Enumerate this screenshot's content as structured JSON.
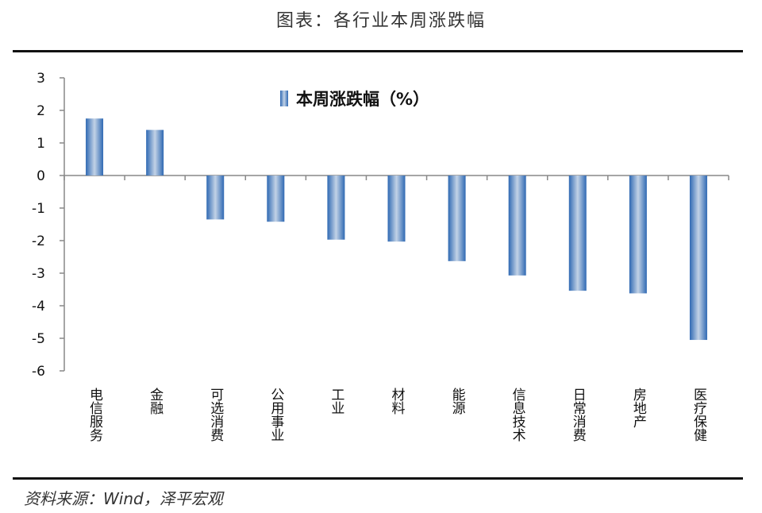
{
  "header": {
    "title": "图表：各行业本周涨跌幅"
  },
  "footer": {
    "source": "资料来源：Wind，泽平宏观"
  },
  "colors": {
    "bar_edge": "#3a72b8",
    "bar_mid": "#b9cbe2",
    "axis": "#888888",
    "rule": "#111111"
  },
  "chart_data": {
    "type": "bar",
    "categories": [
      "电信服务",
      "金融",
      "可选消费",
      "公用事业",
      "工业",
      "材料",
      "能源",
      "信息技术",
      "日常消费",
      "房地产",
      "医疗保健"
    ],
    "series": [
      {
        "name": "本周涨跌幅（%）",
        "values": [
          1.75,
          1.4,
          -1.35,
          -1.42,
          -1.97,
          -2.03,
          -2.63,
          -3.07,
          -3.54,
          -3.62,
          -5.05
        ]
      }
    ],
    "yticks": [
      "3",
      "2",
      "1",
      "0",
      "-1",
      "-2",
      "-3",
      "-4",
      "-5",
      "-6"
    ],
    "ylim": [
      -6,
      3
    ],
    "grid": false,
    "legend_position": "top-center"
  }
}
